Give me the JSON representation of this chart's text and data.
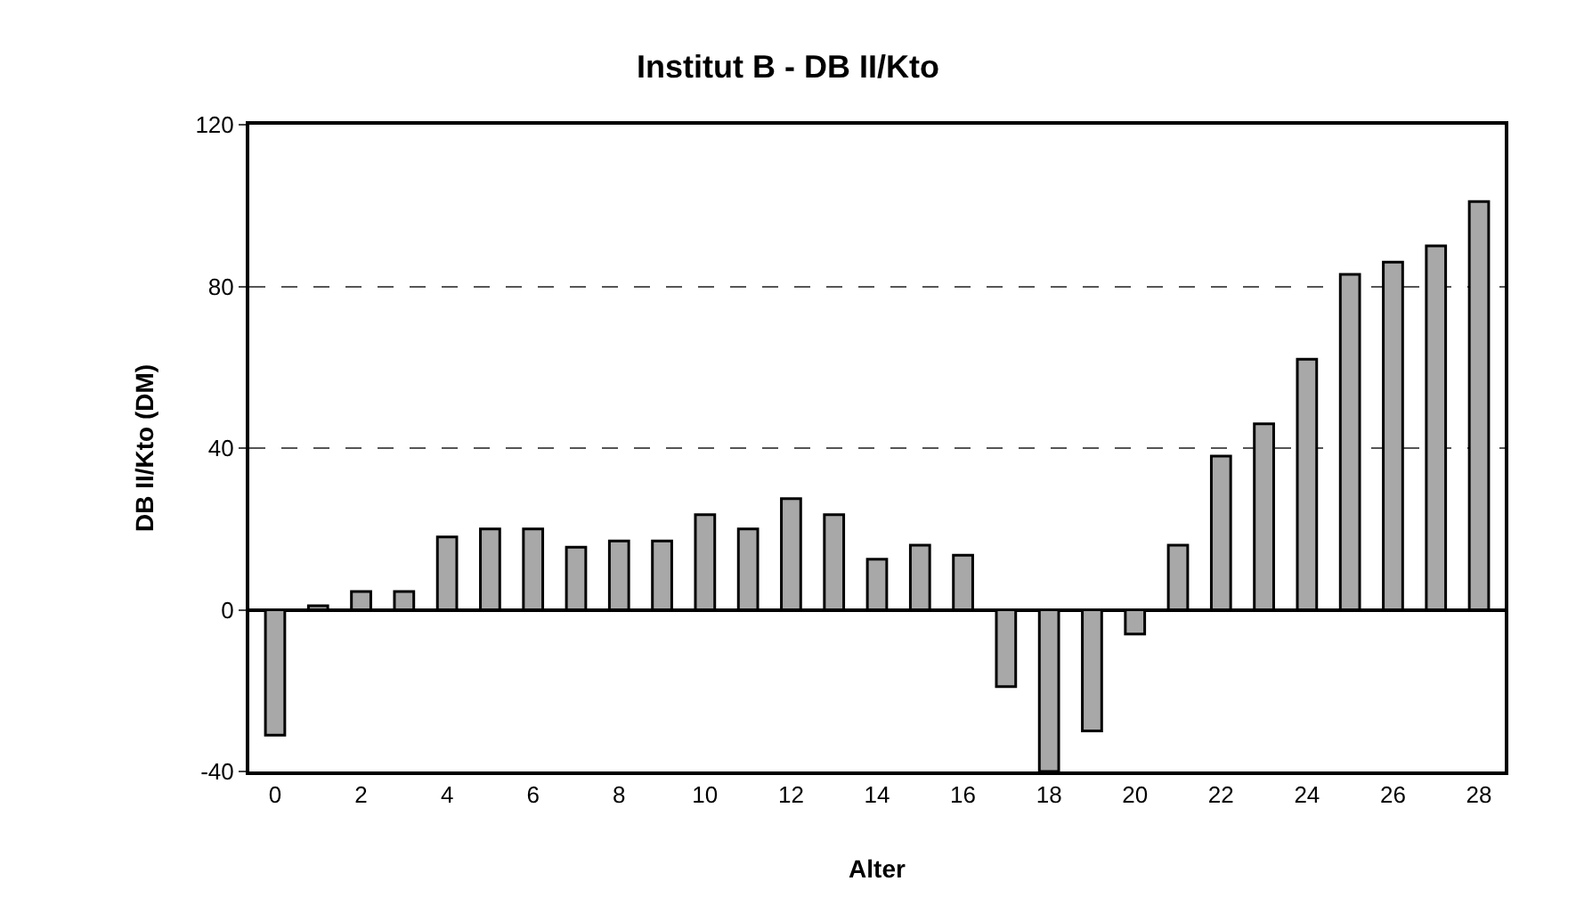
{
  "chart_data": {
    "type": "bar",
    "title": "Institut B - DB II/Kto",
    "xlabel": "Alter",
    "ylabel": "DB II/Kto (DM)",
    "x": [
      0,
      1,
      2,
      3,
      4,
      5,
      6,
      7,
      8,
      9,
      10,
      11,
      12,
      13,
      14,
      15,
      16,
      17,
      18,
      19,
      20,
      21,
      22,
      23,
      24,
      25,
      26,
      27,
      28
    ],
    "values": [
      -31,
      1,
      4.5,
      4.5,
      18,
      20,
      20,
      15.5,
      17,
      17,
      23.5,
      20,
      27.5,
      23.5,
      12.5,
      16,
      13.5,
      -19,
      -40,
      -30,
      -6,
      16,
      38,
      46,
      62,
      83,
      86,
      90,
      101
    ],
    "color": "#a8a8a8",
    "xlim": [
      -0.6,
      28.6
    ],
    "xticks": [
      0,
      2,
      4,
      6,
      8,
      10,
      12,
      14,
      16,
      18,
      20,
      22,
      24,
      26,
      28
    ],
    "ylim": [
      -40,
      120
    ],
    "yticks": [
      -40,
      0,
      40,
      80,
      120
    ],
    "grid": "y",
    "legend": false
  }
}
